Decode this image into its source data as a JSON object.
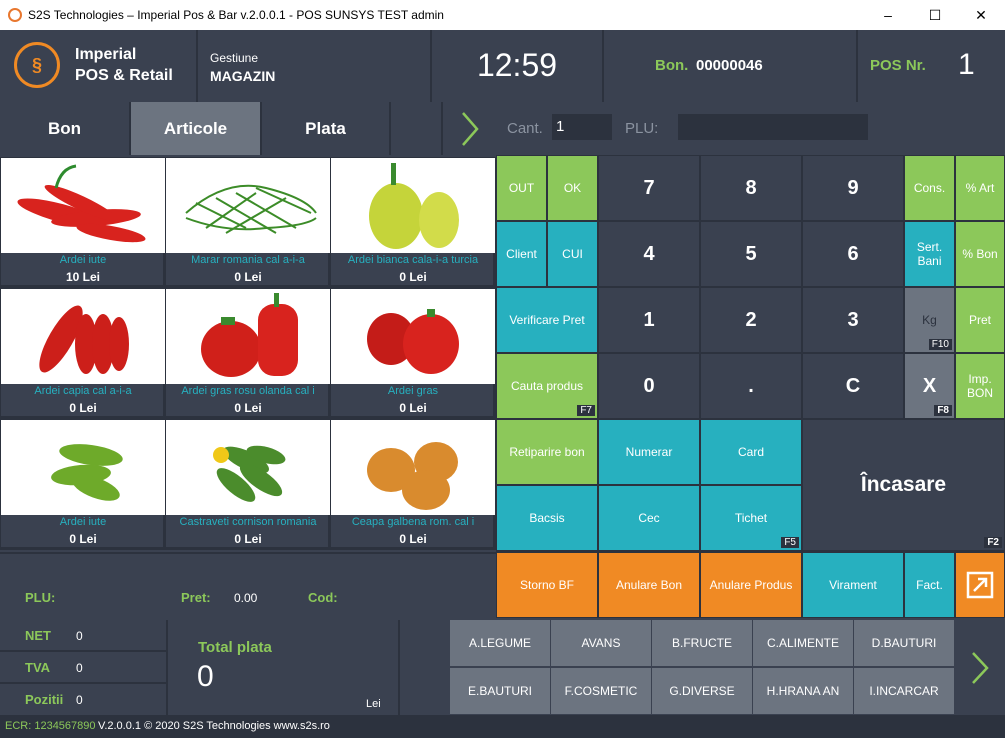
{
  "window": {
    "title": "S2S Technologies – Imperial Pos & Bar  v.2.0.0.1 - POS     SUNSYS TEST     admin",
    "minimize_glyph": "–",
    "maximize_glyph": "☐",
    "close_glyph": "✕"
  },
  "header": {
    "brand_line1": "Imperial",
    "brand_line2": "POS & Retail",
    "gestiune_label": "Gestiune",
    "gestiune_value": "MAGAZIN",
    "clock": "12:59",
    "bon_label": "Bon.",
    "bon_value": "00000046",
    "pos_label": "POS Nr.",
    "pos_value": "1"
  },
  "tabs": [
    {
      "label": "Bon"
    },
    {
      "label": "Articole"
    },
    {
      "label": "Plata"
    }
  ],
  "entry": {
    "cant_label": "Cant.",
    "cant_value": "1",
    "plu_label": "PLU:",
    "plu_value": ""
  },
  "products": [
    {
      "name": "Ardei iute",
      "price": "10 Lei"
    },
    {
      "name": "Marar romania cal a-i-a",
      "price": "0 Lei"
    },
    {
      "name": "Ardei bianca cala-i-a turcia",
      "price": "0 Lei"
    },
    {
      "name": "Ardei capia cal a-i-a",
      "price": "0 Lei"
    },
    {
      "name": "Ardei gras rosu olanda cal i",
      "price": "0 Lei"
    },
    {
      "name": "Ardei gras",
      "price": "0 Lei"
    },
    {
      "name": "Ardei iute",
      "price": "0 Lei"
    },
    {
      "name": "Castraveti cornison romania",
      "price": "0 Lei"
    },
    {
      "name": "Ceapa galbena rom. cal i",
      "price": "0 Lei"
    }
  ],
  "info": {
    "plu_label": "PLU:",
    "pret_label": "Pret:",
    "pret_value": "0.00",
    "cod_label": "Cod:"
  },
  "totals": {
    "net_label": "NET",
    "net_value": "0",
    "tva_label": "TVA",
    "tva_value": "0",
    "pozitii_label": "Pozitii",
    "pozitii_value": "0",
    "total_label": "Total plata",
    "total_value": "0",
    "currency": "Lei"
  },
  "categories": [
    "A.LEGUME",
    "AVANS",
    "B.FRUCTE",
    "C.ALIMENTE",
    "D.BAUTURI",
    "E.BAUTURI",
    "F.COSMETIC",
    "G.DIVERSE",
    "H.HRANA AN",
    "I.INCARCAR"
  ],
  "keys": {
    "out": "OUT",
    "ok": "OK",
    "client": "Client",
    "cui": "CUI",
    "verificare": "Verificare Pret",
    "cauta": "Cauta produs",
    "cauta_f": "F7",
    "d7": "7",
    "d8": "8",
    "d9": "9",
    "d4": "4",
    "d5": "5",
    "d6": "6",
    "d1": "1",
    "d2": "2",
    "d3": "3",
    "d0": "0",
    "dot": ".",
    "c": "C",
    "cons": "Cons.",
    "pct_art": "% Art",
    "sert_bani": "Sert. Bani",
    "pct_bon": "% Bon",
    "kg": "Kg",
    "kg_f": "F10",
    "pret": "Pret",
    "x": "X",
    "x_f": "F8",
    "imp_bon": "Imp. BON",
    "retiparire": "Retiparire bon",
    "numerar": "Numerar",
    "card": "Card",
    "incasare": "Încasare",
    "incasare_f": "F2",
    "bacsis": "Bacsis",
    "cec": "Cec",
    "tichet": "Tichet",
    "tichet_f": "F5",
    "storno": "Storno BF",
    "anulare_bon": "Anulare Bon",
    "anulare_produs": "Anulare Produs",
    "virament": "Virament",
    "fact": "Fact."
  },
  "footer": {
    "ecr": "ECR: 1234567890",
    "version": "V.2.0.0.1 © 2020 S2S Technologies www.s2s.ro"
  },
  "colors": {
    "dark": "#3a4150",
    "darker": "#2c323e",
    "green": "#8cc85a",
    "teal": "#27b0bf",
    "orange": "#f08a24",
    "gray": "#6c7480"
  }
}
